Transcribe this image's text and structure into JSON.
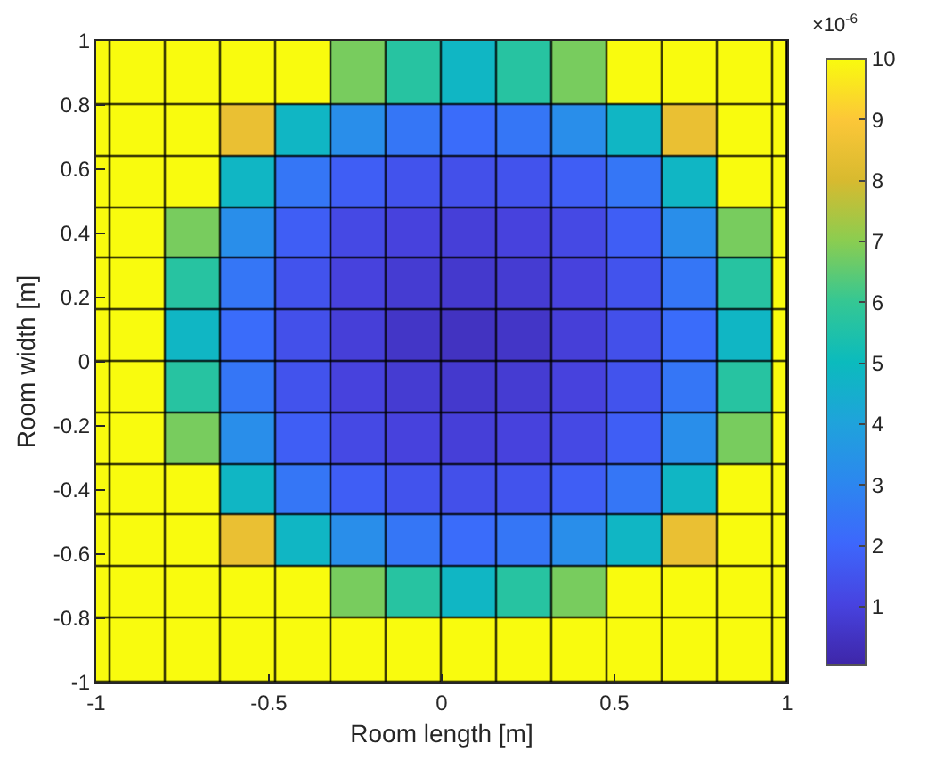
{
  "chart_data": {
    "type": "heatmap",
    "xlabel": "Room length [m]",
    "ylabel": "Room width [m]",
    "clabel": "×10$^{-6}$",
    "x": [
      -0.98,
      -0.88,
      -0.72,
      -0.56,
      -0.4,
      -0.24,
      -0.08,
      0.08,
      0.24,
      0.4,
      0.56,
      0.72,
      0.88,
      0.98
    ],
    "xlim": [
      -1,
      1
    ],
    "xticks": [
      -1,
      -0.5,
      0,
      0.5,
      1
    ],
    "ylim": [
      -1,
      1
    ],
    "yticks": [
      -1,
      -0.8,
      -0.6,
      -0.4,
      -0.2,
      0,
      0.2,
      0.4,
      0.6,
      0.8,
      1
    ],
    "clim": [
      0.05,
      10
    ],
    "cticks": [
      1,
      2,
      3,
      4,
      5,
      6,
      7,
      8,
      9,
      10
    ],
    "cells": [
      [
        10,
        10,
        10,
        10,
        10,
        6.8,
        5.7,
        4.8,
        5.7,
        6.8,
        10,
        10,
        10,
        10
      ],
      [
        10,
        10,
        10,
        8.5,
        4.8,
        3.3,
        2.5,
        2.2,
        2.5,
        3.3,
        4.8,
        8.5,
        10,
        10
      ],
      [
        10,
        10,
        10,
        4.8,
        2.5,
        1.8,
        1.5,
        1.4,
        1.5,
        1.8,
        2.5,
        4.8,
        10,
        10
      ],
      [
        10,
        10,
        6.8,
        3.3,
        1.8,
        1.2,
        1.0,
        0.9,
        1.0,
        1.2,
        1.8,
        3.3,
        6.8,
        10
      ],
      [
        10,
        10,
        5.7,
        2.5,
        1.5,
        1.0,
        0.8,
        0.7,
        0.8,
        1.0,
        1.5,
        2.5,
        5.7,
        10
      ],
      [
        10,
        10,
        4.8,
        2.2,
        1.4,
        0.9,
        0.6,
        0.5,
        0.6,
        0.9,
        1.4,
        2.2,
        4.8,
        10
      ],
      [
        10,
        10,
        5.7,
        2.5,
        1.5,
        1.0,
        0.8,
        0.7,
        0.8,
        1.0,
        1.5,
        2.5,
        5.7,
        10
      ],
      [
        10,
        10,
        6.8,
        3.3,
        1.8,
        1.2,
        1.0,
        0.9,
        1.0,
        1.2,
        1.8,
        3.3,
        6.8,
        10
      ],
      [
        10,
        10,
        10,
        4.8,
        2.5,
        1.8,
        1.5,
        1.4,
        1.5,
        1.8,
        2.5,
        4.8,
        10,
        10
      ],
      [
        10,
        10,
        10,
        8.5,
        4.8,
        3.3,
        2.5,
        2.2,
        2.5,
        3.3,
        4.8,
        8.5,
        10,
        10
      ],
      [
        10,
        10,
        10,
        10,
        10,
        6.8,
        5.7,
        4.8,
        5.7,
        6.8,
        10,
        10,
        10,
        10
      ],
      [
        10,
        10,
        10,
        10,
        10,
        10,
        10,
        10,
        10,
        10,
        10,
        10,
        10,
        10
      ]
    ]
  }
}
